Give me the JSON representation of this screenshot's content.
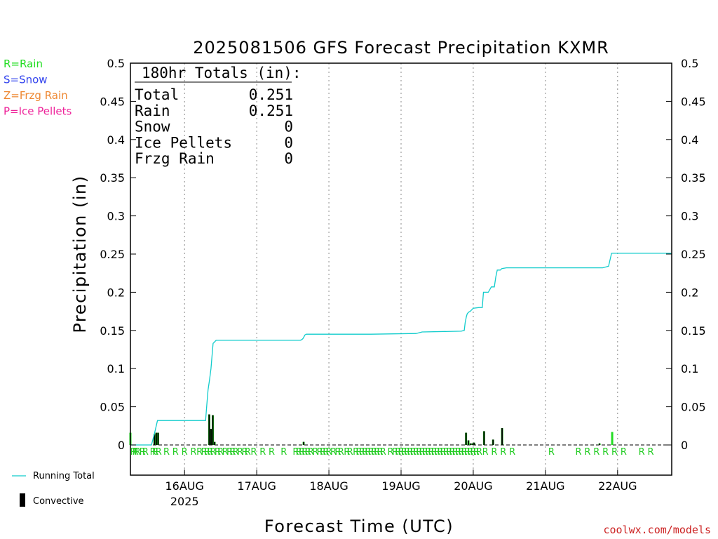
{
  "chart_data": {
    "type": "bar",
    "title": "2025081506 GFS Forecast Precipitation KXMR",
    "xlabel": "Forecast Time (UTC)",
    "ylabel": "Precipitation (in)",
    "ylim": [
      0,
      0.5
    ],
    "yticks": [
      "0",
      "0.05",
      "0.1",
      "0.15",
      "0.2",
      "0.25",
      "0.3",
      "0.35",
      "0.4",
      "0.45",
      "0.5"
    ],
    "xlim_hours": [
      0,
      180
    ],
    "day_ticks": [
      {
        "label": "16AUG",
        "hour": 18
      },
      {
        "label": "17AUG",
        "hour": 42
      },
      {
        "label": "18AUG",
        "hour": 66
      },
      {
        "label": "19AUG",
        "hour": 90
      },
      {
        "label": "20AUG",
        "hour": 114
      },
      {
        "label": "21AUG",
        "hour": 138
      },
      {
        "label": "22AUG",
        "hour": 162
      }
    ],
    "year_label": "2025",
    "totals": {
      "heading": "180hr Totals (in):",
      "rows": [
        {
          "label": "Total",
          "value": "0.251"
        },
        {
          "label": "Rain",
          "value": "0.251"
        },
        {
          "label": "Snow",
          "value": "0"
        },
        {
          "label": "Ice Pellets",
          "value": "0"
        },
        {
          "label": "Frzg Rain",
          "value": "0"
        }
      ]
    },
    "legend_types": [
      {
        "label": "R=Rain",
        "color": "#22dd22"
      },
      {
        "label": "S=Snow",
        "color": "#3344ee"
      },
      {
        "label": "Z=Frzg Rain",
        "color": "#ee8833"
      },
      {
        "label": "P=Ice Pellets",
        "color": "#ee2299"
      }
    ],
    "legend_series": [
      {
        "label": "Running Total",
        "color": "#11cccc"
      },
      {
        "label": "Convective",
        "color": "#000000"
      }
    ],
    "running_total": {
      "name": "Running Total",
      "hours": [
        0,
        7,
        8,
        9,
        25,
        25.4,
        25.8,
        26.3,
        26.8,
        27.2,
        27.5,
        28.5,
        56.5,
        57,
        57.5,
        58,
        58.5,
        80,
        95,
        97,
        110,
        111,
        111.3,
        111.7,
        112,
        112.5,
        113,
        114,
        116,
        117,
        117.4,
        119,
        120,
        121,
        121.5,
        122,
        123,
        123.5,
        125,
        157,
        159,
        160,
        180
      ],
      "values": [
        0,
        0,
        0.015,
        0.032,
        0.032,
        0.052,
        0.072,
        0.085,
        0.1,
        0.12,
        0.133,
        0.137,
        0.137,
        0.138,
        0.14,
        0.144,
        0.145,
        0.145,
        0.146,
        0.148,
        0.149,
        0.15,
        0.16,
        0.168,
        0.172,
        0.174,
        0.175,
        0.179,
        0.18,
        0.18,
        0.2,
        0.2,
        0.207,
        0.207,
        0.22,
        0.229,
        0.229,
        0.231,
        0.232,
        0.232,
        0.234,
        0.251,
        0.251
      ]
    },
    "bars": [
      {
        "hour": 0,
        "total": 0.016,
        "convective": 0.0,
        "color": "#22dd22"
      },
      {
        "hour": 8,
        "total": 0.014,
        "convective": 0.014,
        "color": "#22dd22"
      },
      {
        "hour": 8.6,
        "total": 0.016,
        "convective": 0.016,
        "color": "#22dd22"
      },
      {
        "hour": 9.2,
        "total": 0.016,
        "convective": 0.016,
        "color": "#22dd22"
      },
      {
        "hour": 26.2,
        "total": 0.04,
        "convective": 0.04,
        "color": "#22dd22"
      },
      {
        "hour": 26.8,
        "total": 0.021,
        "convective": 0.021,
        "color": "#22dd22"
      },
      {
        "hour": 27.4,
        "total": 0.039,
        "convective": 0.039,
        "color": "#22dd22"
      },
      {
        "hour": 28.0,
        "total": 0.004,
        "convective": 0.004,
        "color": "#22dd22"
      },
      {
        "hour": 57.6,
        "total": 0.004,
        "convective": 0.004,
        "color": "#22dd22"
      },
      {
        "hour": 111.6,
        "total": 0.016,
        "convective": 0.016,
        "color": "#22dd22"
      },
      {
        "hour": 112.4,
        "total": 0.006,
        "convective": 0.006,
        "color": "#22dd22"
      },
      {
        "hour": 113.1,
        "total": 0.002,
        "convective": 0.002,
        "color": "#22dd22"
      },
      {
        "hour": 113.7,
        "total": 0.002,
        "convective": 0.002,
        "color": "#22dd22"
      },
      {
        "hour": 114.3,
        "total": 0.003,
        "convective": 0.003,
        "color": "#22dd22"
      },
      {
        "hour": 117.6,
        "total": 0.018,
        "convective": 0.018,
        "color": "#22dd22"
      },
      {
        "hour": 120.6,
        "total": 0.007,
        "convective": 0.007,
        "color": "#22dd22"
      },
      {
        "hour": 123.6,
        "total": 0.022,
        "convective": 0.022,
        "color": "#22dd22"
      },
      {
        "hour": 156,
        "total": 0.002,
        "convective": 0.002,
        "color": "#22dd22"
      },
      {
        "hour": 160.2,
        "total": 0.017,
        "convective": 0.0,
        "color": "#22dd22"
      }
    ],
    "ptype_marks": [
      {
        "hour": 1,
        "label": "R"
      },
      {
        "hour": 1.7,
        "label": "R"
      },
      {
        "hour": 2.4,
        "label": "R"
      },
      {
        "hour": 4,
        "label": "R"
      },
      {
        "hour": 5,
        "label": "R"
      },
      {
        "hour": 7.5,
        "label": "R"
      },
      {
        "hour": 8.3,
        "label": "R"
      },
      {
        "hour": 9.4,
        "label": "R"
      },
      {
        "hour": 12,
        "label": "R"
      },
      {
        "hour": 15,
        "label": "R"
      },
      {
        "hour": 18,
        "label": "R"
      },
      {
        "hour": 21,
        "label": "R"
      },
      {
        "hour": 23,
        "label": "R"
      },
      {
        "hour": 24.5,
        "label": "R"
      },
      {
        "hour": 25.5,
        "label": "R"
      },
      {
        "hour": 26.5,
        "label": "R"
      },
      {
        "hour": 27.5,
        "label": "R"
      },
      {
        "hour": 29,
        "label": "R"
      },
      {
        "hour": 30,
        "label": "R"
      },
      {
        "hour": 31.5,
        "label": "R"
      },
      {
        "hour": 33,
        "label": "R"
      },
      {
        "hour": 34,
        "label": "R"
      },
      {
        "hour": 35,
        "label": "R"
      },
      {
        "hour": 36.5,
        "label": "R"
      },
      {
        "hour": 38,
        "label": "R"
      },
      {
        "hour": 39,
        "label": "R"
      },
      {
        "hour": 41,
        "label": "R"
      },
      {
        "hour": 44,
        "label": "R"
      },
      {
        "hour": 47,
        "label": "R"
      },
      {
        "hour": 51,
        "label": "R"
      },
      {
        "hour": 55,
        "label": "R"
      },
      {
        "hour": 56,
        "label": "R"
      },
      {
        "hour": 57,
        "label": "R"
      },
      {
        "hour": 58,
        "label": "R"
      },
      {
        "hour": 59,
        "label": "R"
      },
      {
        "hour": 60,
        "label": "R"
      },
      {
        "hour": 61.5,
        "label": "R"
      },
      {
        "hour": 63,
        "label": "R"
      },
      {
        "hour": 64,
        "label": "R"
      },
      {
        "hour": 65,
        "label": "R"
      },
      {
        "hour": 66,
        "label": "R"
      },
      {
        "hour": 67.5,
        "label": "R"
      },
      {
        "hour": 69,
        "label": "R"
      },
      {
        "hour": 70,
        "label": "R"
      },
      {
        "hour": 72,
        "label": "R"
      },
      {
        "hour": 73,
        "label": "R"
      },
      {
        "hour": 75,
        "label": "R"
      },
      {
        "hour": 76,
        "label": "R"
      },
      {
        "hour": 77,
        "label": "R"
      },
      {
        "hour": 78,
        "label": "R"
      },
      {
        "hour": 79,
        "label": "R"
      },
      {
        "hour": 80,
        "label": "R"
      },
      {
        "hour": 81,
        "label": "R"
      },
      {
        "hour": 82,
        "label": "R"
      },
      {
        "hour": 83,
        "label": "R"
      },
      {
        "hour": 84,
        "label": "R"
      },
      {
        "hour": 86.5,
        "label": "R"
      },
      {
        "hour": 88,
        "label": "R"
      },
      {
        "hour": 89,
        "label": "R"
      },
      {
        "hour": 90,
        "label": "R"
      },
      {
        "hour": 91,
        "label": "R"
      },
      {
        "hour": 92,
        "label": "R"
      },
      {
        "hour": 93,
        "label": "R"
      },
      {
        "hour": 94,
        "label": "R"
      },
      {
        "hour": 95,
        "label": "R"
      },
      {
        "hour": 96,
        "label": "R"
      },
      {
        "hour": 97,
        "label": "R"
      },
      {
        "hour": 98,
        "label": "R"
      },
      {
        "hour": 99,
        "label": "R"
      },
      {
        "hour": 100,
        "label": "R"
      },
      {
        "hour": 101,
        "label": "R"
      },
      {
        "hour": 102,
        "label": "R"
      },
      {
        "hour": 103,
        "label": "R"
      },
      {
        "hour": 104,
        "label": "R"
      },
      {
        "hour": 105,
        "label": "R"
      },
      {
        "hour": 106,
        "label": "R"
      },
      {
        "hour": 107,
        "label": "R"
      },
      {
        "hour": 108,
        "label": "R"
      },
      {
        "hour": 109,
        "label": "R"
      },
      {
        "hour": 110,
        "label": "R"
      },
      {
        "hour": 111,
        "label": "R"
      },
      {
        "hour": 112,
        "label": "R"
      },
      {
        "hour": 113,
        "label": "R"
      },
      {
        "hour": 114,
        "label": "R"
      },
      {
        "hour": 115,
        "label": "R"
      },
      {
        "hour": 116,
        "label": "R"
      },
      {
        "hour": 118,
        "label": "R"
      },
      {
        "hour": 121,
        "label": "R"
      },
      {
        "hour": 124,
        "label": "R"
      },
      {
        "hour": 127,
        "label": "R"
      },
      {
        "hour": 140,
        "label": "R"
      },
      {
        "hour": 149,
        "label": "R"
      },
      {
        "hour": 152,
        "label": "R"
      },
      {
        "hour": 155,
        "label": "R"
      },
      {
        "hour": 158,
        "label": "R"
      },
      {
        "hour": 161,
        "label": "R"
      },
      {
        "hour": 164,
        "label": "R"
      },
      {
        "hour": 170,
        "label": "R"
      },
      {
        "hour": 173,
        "label": "R"
      }
    ],
    "credit": "coolwx.com/models"
  }
}
